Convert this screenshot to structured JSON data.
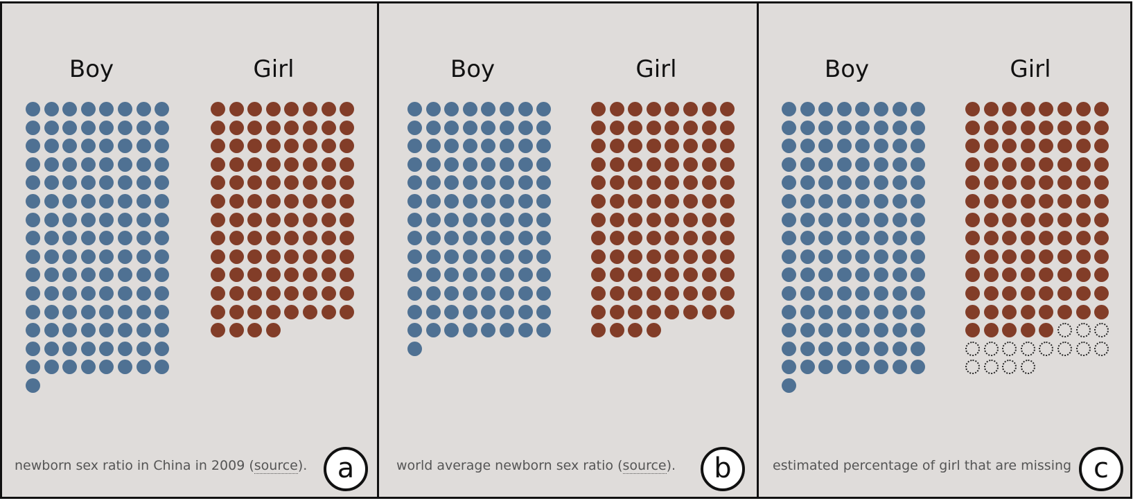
{
  "colors": {
    "boy": "#4f7193",
    "girl": "#823d28",
    "missing_outline": "#222222",
    "panel_bg": "#dfdcda"
  },
  "chart_data": [
    {
      "type": "waffle",
      "panel_label": "a",
      "caption": "newborn sex ratio in China in 2009 (",
      "caption_link": "source",
      "caption_tail": ").",
      "columns": 8,
      "series": [
        {
          "name": "Boy",
          "count": 121,
          "missing": 0
        },
        {
          "name": "Girl",
          "count": 100,
          "missing": 0
        }
      ]
    },
    {
      "type": "waffle",
      "panel_label": "b",
      "caption": "world average newborn sex ratio (",
      "caption_link": "source",
      "caption_tail": ").",
      "columns": 8,
      "series": [
        {
          "name": "Boy",
          "count": 105,
          "missing": 0
        },
        {
          "name": "Girl",
          "count": 100,
          "missing": 0
        }
      ]
    },
    {
      "type": "waffle",
      "panel_label": "c",
      "caption": "estimated percentage of girl that are missing",
      "caption_link": "",
      "caption_tail": "",
      "columns": 8,
      "series": [
        {
          "name": "Boy",
          "count": 121,
          "missing": 0
        },
        {
          "name": "Girl",
          "count": 101,
          "missing": 15
        }
      ]
    }
  ]
}
